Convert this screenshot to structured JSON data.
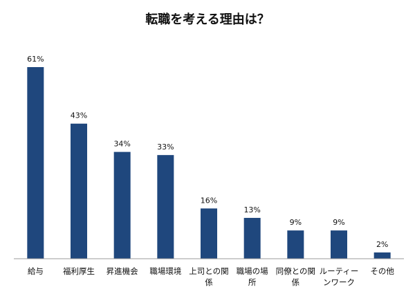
{
  "chart_data": {
    "type": "bar",
    "title": "転職を考える理由は？",
    "categories": [
      [
        "給与"
      ],
      [
        "福利厚生"
      ],
      [
        "昇進機会"
      ],
      [
        "職場環境"
      ],
      [
        "上司との関",
        "係"
      ],
      [
        "職場の場",
        "所"
      ],
      [
        "同僚との関",
        "係"
      ],
      [
        "ルーティー",
        "ンワーク"
      ],
      [
        "その他"
      ]
    ],
    "values": [
      61,
      43,
      34,
      33,
      16,
      13,
      9,
      9,
      2
    ],
    "value_labels": [
      "61%",
      "43%",
      "34%",
      "33%",
      "16%",
      "13%",
      "9%",
      "9%",
      "2%"
    ],
    "unit": "%",
    "ylim": [
      0,
      61
    ],
    "grid": false,
    "legend": "none",
    "bar_color": "#1F477D",
    "axis_color": "#999999"
  }
}
